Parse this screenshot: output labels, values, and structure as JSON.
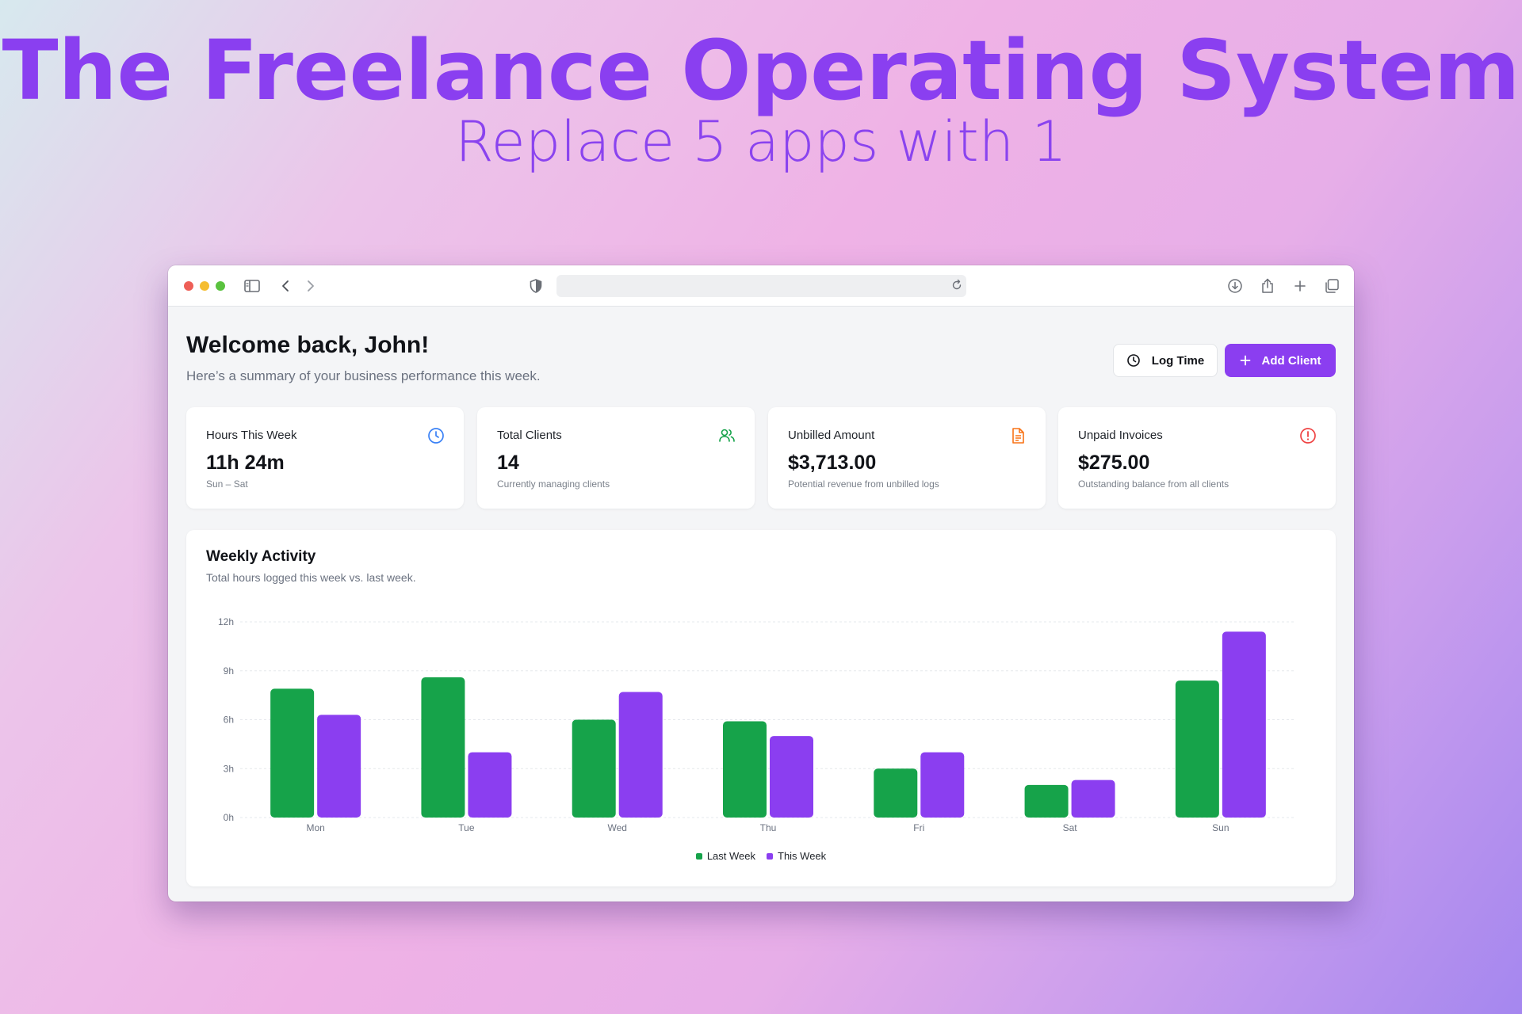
{
  "hero": {
    "title": "The Freelance Operating System",
    "subtitle": "Replace 5 apps with 1"
  },
  "browser": {
    "toolbar_icons": [
      "sidebar-icon",
      "back-icon",
      "forward-icon",
      "shield-icon",
      "reload-icon",
      "download-icon",
      "share-icon",
      "new-tab-icon",
      "tabs-icon"
    ],
    "url": ""
  },
  "dashboard": {
    "welcome": "Welcome back, John!",
    "welcome_sub": "Here’s a summary of your business performance this week.",
    "log_time_label": "Log Time",
    "add_client_label": "Add Client",
    "accent_color": "#8b3ef0",
    "cards": [
      {
        "label": "Hours This Week",
        "value": "11h 24m",
        "sub": "Sun – Sat",
        "icon": "clock-icon",
        "color": "#3b82f6"
      },
      {
        "label": "Total Clients",
        "value": "14",
        "sub": "Currently managing clients",
        "icon": "users-icon",
        "color": "#16a34a"
      },
      {
        "label": "Unbilled Amount",
        "value": "$3,713.00",
        "sub": "Potential revenue from unbilled logs",
        "icon": "document-icon",
        "color": "#f97316"
      },
      {
        "label": "Unpaid Invoices",
        "value": "$275.00",
        "sub": "Outstanding balance from all clients",
        "icon": "alert-circle-icon",
        "color": "#ef4444"
      }
    ]
  },
  "chart_data": {
    "type": "bar",
    "title": "Weekly Activity",
    "subtitle": "Total hours logged this week vs. last week.",
    "categories": [
      "Mon",
      "Tue",
      "Wed",
      "Thu",
      "Fri",
      "Sat",
      "Sun"
    ],
    "yticks": [
      "0h",
      "3h",
      "6h",
      "9h",
      "12h"
    ],
    "ylim": [
      0,
      12
    ],
    "grid": true,
    "legend_position": "bottom",
    "series": [
      {
        "name": "Last Week",
        "color": "#16a34a",
        "values": [
          7.9,
          8.6,
          6.0,
          5.9,
          3.0,
          2.0,
          8.4
        ]
      },
      {
        "name": "This Week",
        "color": "#8b3ef0",
        "values": [
          6.3,
          4.0,
          7.7,
          5.0,
          4.0,
          2.3,
          11.4
        ]
      }
    ]
  }
}
